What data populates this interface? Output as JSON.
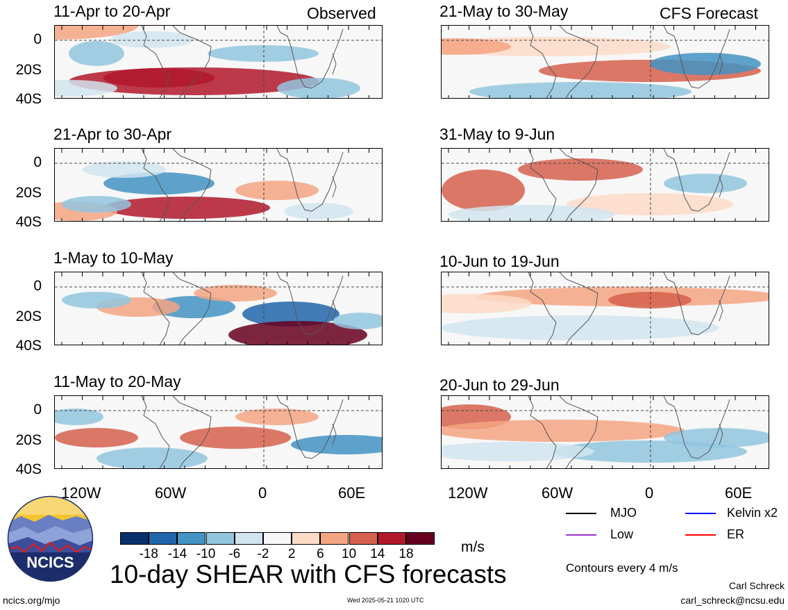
{
  "header": {
    "left_label": "Observed",
    "right_label": "CFS Forecast"
  },
  "panels": {
    "observed": [
      {
        "title": "11-Apr to 20-Apr"
      },
      {
        "title": "21-Apr to 30-Apr"
      },
      {
        "title": "1-May to 10-May"
      },
      {
        "title": "11-May to 20-May"
      }
    ],
    "forecast": [
      {
        "title": "21-May to 30-May"
      },
      {
        "title": "31-May to 9-Jun"
      },
      {
        "title": "10-Jun to 19-Jun"
      },
      {
        "title": "20-Jun to 29-Jun"
      }
    ]
  },
  "lat_labels": [
    "0",
    "20S",
    "40S"
  ],
  "lon_labels": [
    "120W",
    "60W",
    "0",
    "60E"
  ],
  "colorbar": {
    "unit": "m/s",
    "labels": [
      "-18",
      "-14",
      "-10",
      "-6",
      "-2",
      "2",
      "6",
      "10",
      "14",
      "18"
    ],
    "colors": [
      "#08306b",
      "#2166ac",
      "#4393c3",
      "#92c5de",
      "#d1e5f0",
      "#f7f7f7",
      "#fddbc7",
      "#f4a582",
      "#d6604d",
      "#b2182b",
      "#67001f"
    ]
  },
  "legend": {
    "items": [
      {
        "label": "MJO",
        "color": "#000000"
      },
      {
        "label": "Kelvin x2",
        "color": "#0000ff"
      },
      {
        "label": "Low",
        "color": "#9932cc"
      },
      {
        "label": "ER",
        "color": "#ff0000"
      }
    ],
    "contours_note": "Contours every 4 m/s"
  },
  "footer": {
    "main_title": "10-day SHEAR with CFS forecasts",
    "logo_text": "NCICS",
    "site": "ncics.org/mjo",
    "timestamp": "Wed 2025-05-21 1020 UTC",
    "author": "Carl Schreck",
    "email": "carl_schreck@ncsu.edu"
  }
}
